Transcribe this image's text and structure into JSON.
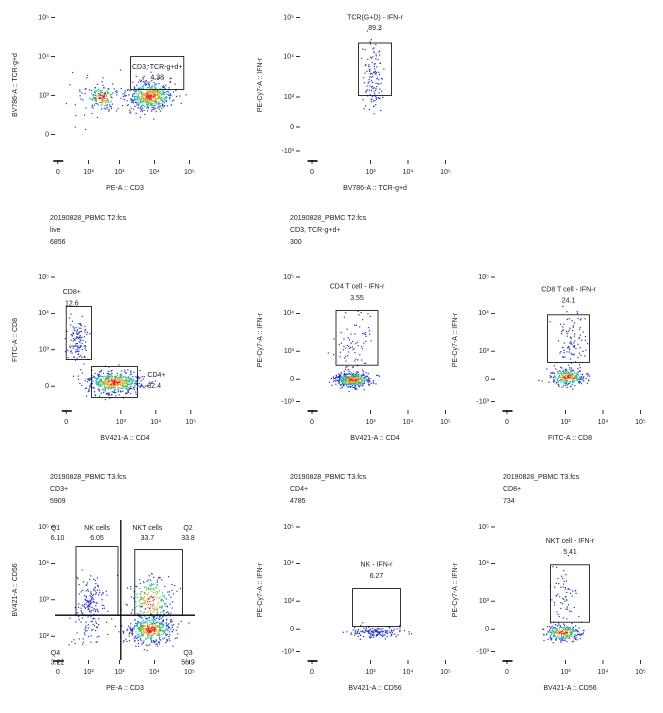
{
  "panels": [
    {
      "header": null,
      "x_label": "PE-A :: CD3",
      "y_label": "BV786-A :: TCR-g+d",
      "x_ticks": [
        "0",
        "10²",
        "10³",
        "10⁴",
        "10⁵"
      ],
      "y_ticks": [
        "10⁵",
        "10⁴",
        "10³",
        "0"
      ],
      "gates": [
        {
          "name": "CD3, TCR-g+d+",
          "value": "4.38"
        }
      ]
    },
    {
      "header": null,
      "x_label": "BV786-A :: TCR-g+d",
      "y_label": "PE-Cy7-A :: IFN-r",
      "x_ticks": [
        "0",
        "10³",
        "10⁴",
        "10⁵"
      ],
      "y_ticks": [
        "10⁵",
        "10⁴",
        "10³",
        "0",
        "-10³"
      ],
      "gates": [
        {
          "name": "TCR(G+D) - IFN-r",
          "value": "89.3"
        }
      ]
    },
    {
      "header": [
        "20190828_PBMC T2.fcs",
        "live",
        "6856"
      ],
      "x_label": "BV421-A :: CD4",
      "y_label": "FITC-A :: CD8",
      "x_ticks": [
        "0",
        "10³",
        "10⁴",
        "10⁵"
      ],
      "y_ticks": [
        "10⁵",
        "10⁴",
        "10³",
        "0"
      ],
      "gates": [
        {
          "name": "CD8+",
          "value": "12.6"
        },
        {
          "name": "CD4+",
          "value": "82.4"
        }
      ]
    },
    {
      "header": [
        "20190828_PBMC T2.fcs",
        "CD3, TCR-g+d+",
        "300"
      ],
      "x_label": "BV421-A :: CD4",
      "y_label": "PE-Cy7-A :: IFN-r",
      "x_ticks": [
        "0",
        "10³",
        "10⁴",
        "10⁵"
      ],
      "y_ticks": [
        "10⁵",
        "10⁴",
        "10³",
        "0",
        "-10³"
      ],
      "gates": [
        {
          "name": "CD4 T cell - IFN-r",
          "value": "3.55"
        }
      ]
    },
    {
      "header": null,
      "x_label": "FITC-A :: CD8",
      "y_label": "PE-Cy7-A :: IFN-r",
      "x_ticks": [
        "0",
        "10³",
        "10⁴",
        "10⁵"
      ],
      "y_ticks": [
        "10⁵",
        "10⁴",
        "10³",
        "0",
        "-10³"
      ],
      "gates": [
        {
          "name": "CD8 T cell - IFN-r",
          "value": "24.1"
        }
      ]
    },
    {
      "header": [
        "20190828_PBMC T3.fcs",
        "CD3+",
        "5909"
      ],
      "x_label": "PE-A :: CD3",
      "y_label": "BV421-A :: CD56",
      "x_ticks": [
        "0",
        "10²",
        "10³",
        "10⁴",
        "10⁵"
      ],
      "y_ticks": [
        "10⁵",
        "10⁴",
        "10³",
        "10²"
      ],
      "gates": [
        {
          "name": "Q1",
          "value": "6.10"
        },
        {
          "name": "NK cells",
          "value": "6.05"
        },
        {
          "name": "NKT cells",
          "value": "33.7"
        },
        {
          "name": "Q2",
          "value": "33.8"
        },
        {
          "name": "Q4",
          "value": "3.22"
        },
        {
          "name": "Q3",
          "value": "56.9"
        }
      ]
    },
    {
      "header": [
        "20190828_PBMC T3.fcs",
        "CD4+",
        "4785"
      ],
      "x_label": "BV421-A :: CD56",
      "y_label": "PE-Cy7-A :: IFN-r",
      "x_ticks": [
        "0",
        "10³",
        "10⁴",
        "10⁵"
      ],
      "y_ticks": [
        "10⁵",
        "10⁴",
        "10³",
        "0",
        "-10³"
      ],
      "gates": [
        {
          "name": "NK - IFN-r",
          "value": "6.27"
        }
      ]
    },
    {
      "header": [
        "20190828_PBMC T3.fcs",
        "CD8+",
        "734"
      ],
      "x_label": "BV421-A :: CD56",
      "y_label": "PE-Cy7-A :: IFN-r",
      "x_ticks": [
        "0",
        "10³",
        "10⁴",
        "10⁵"
      ],
      "y_ticks": [
        "10⁵",
        "10⁴",
        "10³",
        "0",
        "-10³"
      ],
      "gates": [
        {
          "name": "NKT cell - IFN-r",
          "value": "5.41"
        }
      ]
    }
  ]
}
